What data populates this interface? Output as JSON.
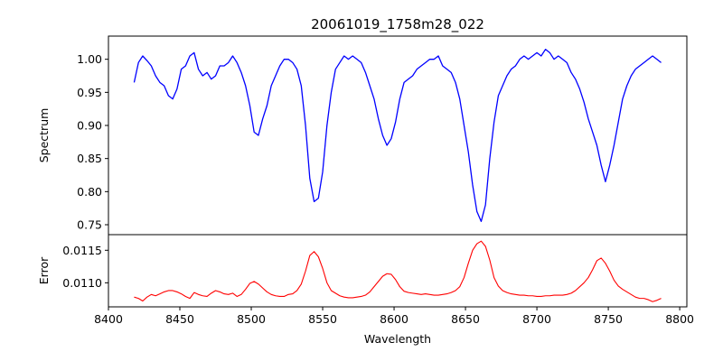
{
  "chart_data": [
    {
      "type": "line",
      "title": "20061019_1758m28_022",
      "xlabel": "",
      "ylabel": "Spectrum",
      "xlim": [
        8400,
        8805
      ],
      "ylim": [
        0.735,
        1.035
      ],
      "yticks": [
        "0.75",
        "0.80",
        "0.85",
        "0.90",
        "0.95",
        "1.00"
      ],
      "grid": false,
      "color": "#0000ff",
      "series": [
        {
          "x": [
            8418,
            8421,
            8424,
            8427,
            8430,
            8433,
            8436,
            8439,
            8442,
            8445,
            8448,
            8451,
            8454,
            8457,
            8460,
            8463,
            8466,
            8469,
            8472,
            8475,
            8478,
            8481,
            8484,
            8487,
            8490,
            8493,
            8496,
            8499,
            8502,
            8505,
            8508,
            8511,
            8514,
            8517,
            8520,
            8523,
            8526,
            8529,
            8532,
            8535,
            8538,
            8541,
            8544,
            8547,
            8550,
            8553,
            8556,
            8559,
            8562,
            8565,
            8568,
            8571,
            8574,
            8577,
            8580,
            8583,
            8586,
            8589,
            8592,
            8595,
            8598,
            8601,
            8604,
            8607,
            8610,
            8613,
            8616,
            8619,
            8622,
            8625,
            8628,
            8631,
            8634,
            8637,
            8640,
            8643,
            8646,
            8649,
            8652,
            8655,
            8658,
            8661,
            8664,
            8667,
            8670,
            8673,
            8676,
            8679,
            8682,
            8685,
            8688,
            8691,
            8694,
            8697,
            8700,
            8703,
            8706,
            8709,
            8712,
            8715,
            8718,
            8721,
            8724,
            8727,
            8730,
            8733,
            8736,
            8739,
            8742,
            8745,
            8748,
            8751,
            8754,
            8757,
            8760,
            8763,
            8766,
            8769,
            8772,
            8775,
            8778,
            8781,
            8784,
            8787
          ],
          "y": [
            0.965,
            0.995,
            1.005,
            0.998,
            0.99,
            0.975,
            0.965,
            0.96,
            0.945,
            0.94,
            0.955,
            0.985,
            0.99,
            1.005,
            1.01,
            0.985,
            0.975,
            0.98,
            0.97,
            0.975,
            0.99,
            0.99,
            0.995,
            1.005,
            0.995,
            0.98,
            0.96,
            0.93,
            0.89,
            0.885,
            0.91,
            0.93,
            0.96,
            0.975,
            0.99,
            1.0,
            1.0,
            0.995,
            0.985,
            0.96,
            0.9,
            0.82,
            0.785,
            0.79,
            0.83,
            0.9,
            0.95,
            0.985,
            0.995,
            1.005,
            1.0,
            1.005,
            1.0,
            0.995,
            0.98,
            0.96,
            0.94,
            0.91,
            0.885,
            0.87,
            0.88,
            0.905,
            0.94,
            0.965,
            0.97,
            0.975,
            0.985,
            0.99,
            0.995,
            1.0,
            1.0,
            1.005,
            0.99,
            0.985,
            0.98,
            0.965,
            0.94,
            0.9,
            0.86,
            0.81,
            0.77,
            0.755,
            0.78,
            0.85,
            0.905,
            0.945,
            0.96,
            0.975,
            0.985,
            0.99,
            1.0,
            1.005,
            1.0,
            1.005,
            1.01,
            1.005,
            1.015,
            1.01,
            1.0,
            1.005,
            1.0,
            0.995,
            0.98,
            0.97,
            0.955,
            0.935,
            0.91,
            0.89,
            0.87,
            0.84,
            0.815,
            0.84,
            0.87,
            0.905,
            0.94,
            0.96,
            0.975,
            0.985,
            0.99,
            0.995,
            1.0,
            1.005,
            1.0,
            0.995
          ]
        }
      ]
    },
    {
      "type": "line",
      "title": "",
      "xlabel": "Wavelength",
      "ylabel": "Error",
      "xlim": [
        8400,
        8805
      ],
      "ylim": [
        0.01063,
        0.01174
      ],
      "xticks": [
        "8400",
        "8450",
        "8500",
        "8550",
        "8600",
        "8650",
        "8700",
        "8750",
        "8800"
      ],
      "yticks": [
        "0.0110",
        "0.0115"
      ],
      "grid": false,
      "color": "#ff0000",
      "series": [
        {
          "x": [
            8418,
            8421,
            8424,
            8427,
            8430,
            8433,
            8436,
            8439,
            8442,
            8445,
            8448,
            8451,
            8454,
            8457,
            8460,
            8463,
            8466,
            8469,
            8472,
            8475,
            8478,
            8481,
            8484,
            8487,
            8490,
            8493,
            8496,
            8499,
            8502,
            8505,
            8508,
            8511,
            8514,
            8517,
            8520,
            8523,
            8526,
            8529,
            8532,
            8535,
            8538,
            8541,
            8544,
            8547,
            8550,
            8553,
            8556,
            8559,
            8562,
            8565,
            8568,
            8571,
            8574,
            8577,
            8580,
            8583,
            8586,
            8589,
            8592,
            8595,
            8598,
            8601,
            8604,
            8607,
            8610,
            8613,
            8616,
            8619,
            8622,
            8625,
            8628,
            8631,
            8634,
            8637,
            8640,
            8643,
            8646,
            8649,
            8652,
            8655,
            8658,
            8661,
            8664,
            8667,
            8670,
            8673,
            8676,
            8679,
            8682,
            8685,
            8688,
            8691,
            8694,
            8697,
            8700,
            8703,
            8706,
            8709,
            8712,
            8715,
            8718,
            8721,
            8724,
            8727,
            8730,
            8733,
            8736,
            8739,
            8742,
            8745,
            8748,
            8751,
            8754,
            8757,
            8760,
            8763,
            8766,
            8769,
            8772,
            8775,
            8778,
            8781,
            8784,
            8787
          ],
          "y": [
            0.01078,
            0.01076,
            0.01072,
            0.01078,
            0.01082,
            0.0108,
            0.01083,
            0.01086,
            0.01088,
            0.01088,
            0.01086,
            0.01083,
            0.01079,
            0.01076,
            0.01085,
            0.01082,
            0.0108,
            0.01079,
            0.01084,
            0.01088,
            0.01086,
            0.01083,
            0.01082,
            0.01084,
            0.01079,
            0.01082,
            0.0109,
            0.01099,
            0.01102,
            0.01098,
            0.01092,
            0.01086,
            0.01082,
            0.0108,
            0.01079,
            0.01079,
            0.01082,
            0.01083,
            0.01088,
            0.01098,
            0.01118,
            0.01142,
            0.01148,
            0.0114,
            0.01122,
            0.011,
            0.01088,
            0.01084,
            0.0108,
            0.01078,
            0.01077,
            0.01077,
            0.01078,
            0.01079,
            0.01081,
            0.01086,
            0.01094,
            0.01102,
            0.0111,
            0.01114,
            0.01113,
            0.01105,
            0.01094,
            0.01087,
            0.01085,
            0.01084,
            0.01083,
            0.01082,
            0.01083,
            0.01082,
            0.01081,
            0.01081,
            0.01082,
            0.01083,
            0.01085,
            0.01088,
            0.01094,
            0.01108,
            0.0113,
            0.0115,
            0.0116,
            0.01164,
            0.01156,
            0.01135,
            0.01108,
            0.01095,
            0.01088,
            0.01085,
            0.01083,
            0.01082,
            0.01081,
            0.01081,
            0.0108,
            0.0108,
            0.01079,
            0.01079,
            0.0108,
            0.0108,
            0.01081,
            0.01081,
            0.01081,
            0.01082,
            0.01084,
            0.01088,
            0.01094,
            0.011,
            0.01108,
            0.0112,
            0.01134,
            0.01138,
            0.0113,
            0.01118,
            0.01104,
            0.01095,
            0.0109,
            0.01086,
            0.01082,
            0.01078,
            0.01076,
            0.01076,
            0.01074,
            0.01071,
            0.01073,
            0.01076
          ]
        }
      ]
    }
  ]
}
